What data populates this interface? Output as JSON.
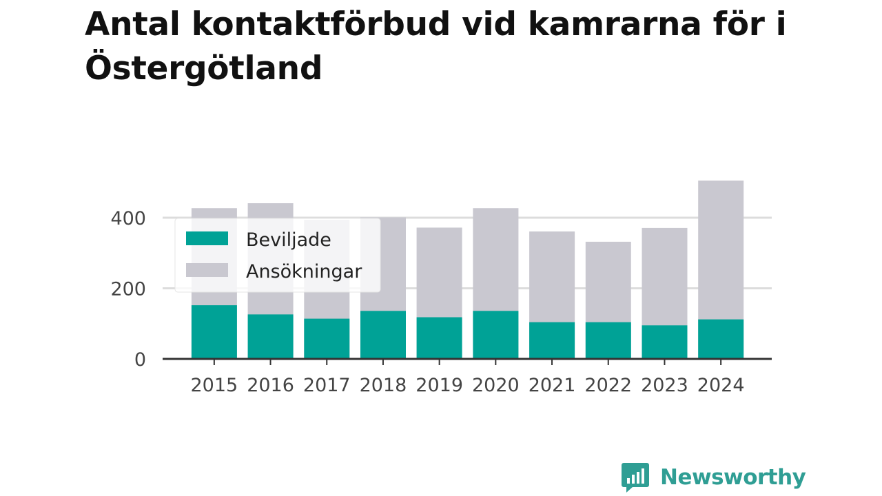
{
  "title": "Antal kontaktförbud vid kamrarna för i Östergötland",
  "colors": {
    "beviljade": "#00a296",
    "ansokningar": "#c9c8d0",
    "grid": "#dcdcdc",
    "axis": "#333333",
    "brand": "#2f9e94"
  },
  "brand": {
    "name": "Newsworthy",
    "icon": "newsworthy-logo-icon"
  },
  "chart_data": {
    "type": "bar",
    "stacking": "overlay",
    "categories": [
      "2015",
      "2016",
      "2017",
      "2018",
      "2019",
      "2020",
      "2021",
      "2022",
      "2023",
      "2024"
    ],
    "series": [
      {
        "name": "Ansökningar",
        "color": "#c9c8d0",
        "values": [
          427,
          441,
          394,
          401,
          372,
          427,
          361,
          332,
          371,
          505
        ]
      },
      {
        "name": "Beviljade",
        "color": "#00a296",
        "values": [
          152,
          126,
          114,
          136,
          118,
          136,
          104,
          104,
          95,
          112
        ]
      }
    ],
    "legend": {
      "entries": [
        "Beviljade",
        "Ansökningar"
      ],
      "position": "top-left"
    },
    "yticks": [
      "0",
      "200",
      "400"
    ],
    "ylim": [
      0,
      500
    ],
    "grid": true,
    "title": "Antal kontaktförbud vid kamrarna för i Östergötland",
    "xlabel": "",
    "ylabel": ""
  }
}
